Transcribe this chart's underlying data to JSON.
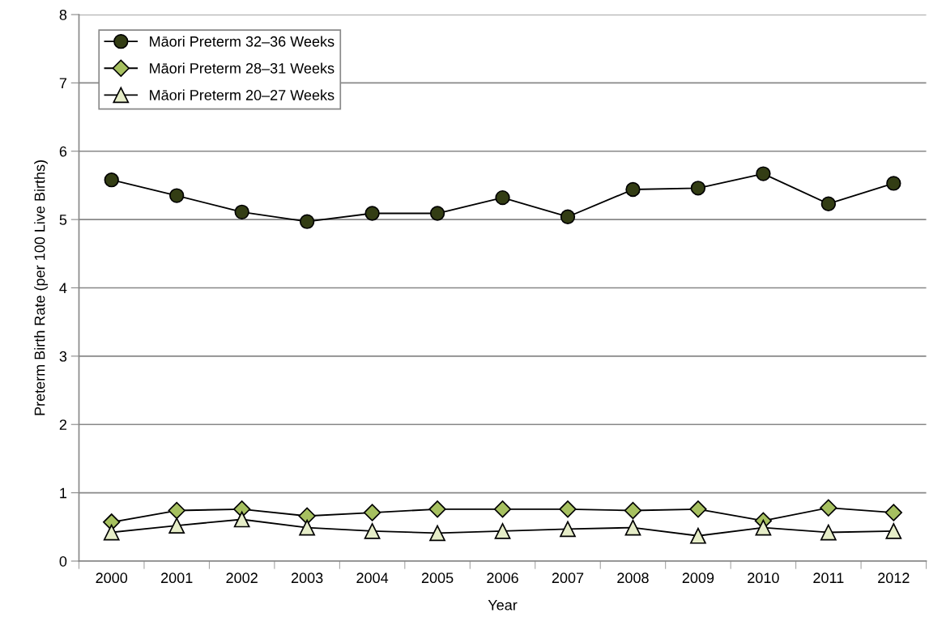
{
  "chart_data": {
    "type": "line",
    "xlabel": "Year",
    "ylabel": "Preterm Birth Rate (per 100 Live Births)",
    "categories": [
      "2000",
      "2001",
      "2002",
      "2003",
      "2004",
      "2005",
      "2006",
      "2007",
      "2008",
      "2009",
      "2010",
      "2011",
      "2012"
    ],
    "series": [
      {
        "name": "Māori Preterm 32–36 Weeks",
        "color": "#333d14",
        "marker": "circle",
        "values": [
          5.58,
          5.35,
          5.11,
          4.97,
          5.09,
          5.09,
          5.32,
          5.04,
          5.44,
          5.46,
          5.67,
          5.23,
          5.53
        ]
      },
      {
        "name": "Māori Preterm 28–31 Weeks",
        "color": "#a6c060",
        "marker": "diamond",
        "values": [
          0.57,
          0.74,
          0.76,
          0.66,
          0.71,
          0.76,
          0.76,
          0.76,
          0.74,
          0.76,
          0.59,
          0.78,
          0.71
        ]
      },
      {
        "name": "Māori Preterm 20–27 Weeks",
        "color": "#e6edc8",
        "marker": "triangle",
        "values": [
          0.42,
          0.52,
          0.61,
          0.49,
          0.44,
          0.41,
          0.44,
          0.47,
          0.49,
          0.37,
          0.49,
          0.42,
          0.44
        ]
      }
    ],
    "ylim": [
      0,
      8
    ],
    "yticks": [
      0,
      1,
      2,
      3,
      4,
      5,
      6,
      7,
      8
    ],
    "grid": "y",
    "legend": "top left",
    "line_style": "solid"
  }
}
